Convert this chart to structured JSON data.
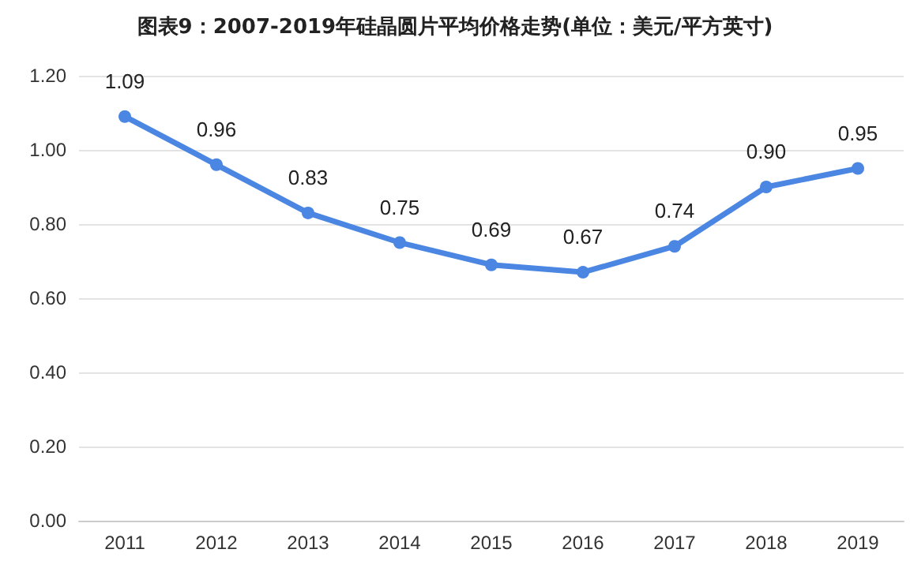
{
  "chart_data": {
    "type": "line",
    "title": "图表9：2007-2019年硅晶圆片平均价格走势(单位：美元/平方英寸)",
    "categories": [
      "2011",
      "2012",
      "2013",
      "2014",
      "2015",
      "2016",
      "2017",
      "2018",
      "2019"
    ],
    "values": [
      1.09,
      0.96,
      0.83,
      0.75,
      0.69,
      0.67,
      0.74,
      0.9,
      0.95
    ],
    "value_labels": [
      "1.09",
      "0.96",
      "0.83",
      "0.75",
      "0.69",
      "0.67",
      "0.74",
      "0.90",
      "0.95"
    ],
    "color": "#4a86e2",
    "ylim": [
      0,
      1.2
    ],
    "yticks": [
      {
        "value": 0,
        "label": "0.00"
      },
      {
        "value": 0.2,
        "label": "0.20"
      },
      {
        "value": 0.4,
        "label": "0.40"
      },
      {
        "value": 0.6,
        "label": "0.60"
      },
      {
        "value": 0.8,
        "label": "0.80"
      },
      {
        "value": 1.0,
        "label": "1.00"
      },
      {
        "value": 1.2,
        "label": "1.20"
      }
    ],
    "grid": "y",
    "marker": "circle",
    "line_style": "solid"
  }
}
